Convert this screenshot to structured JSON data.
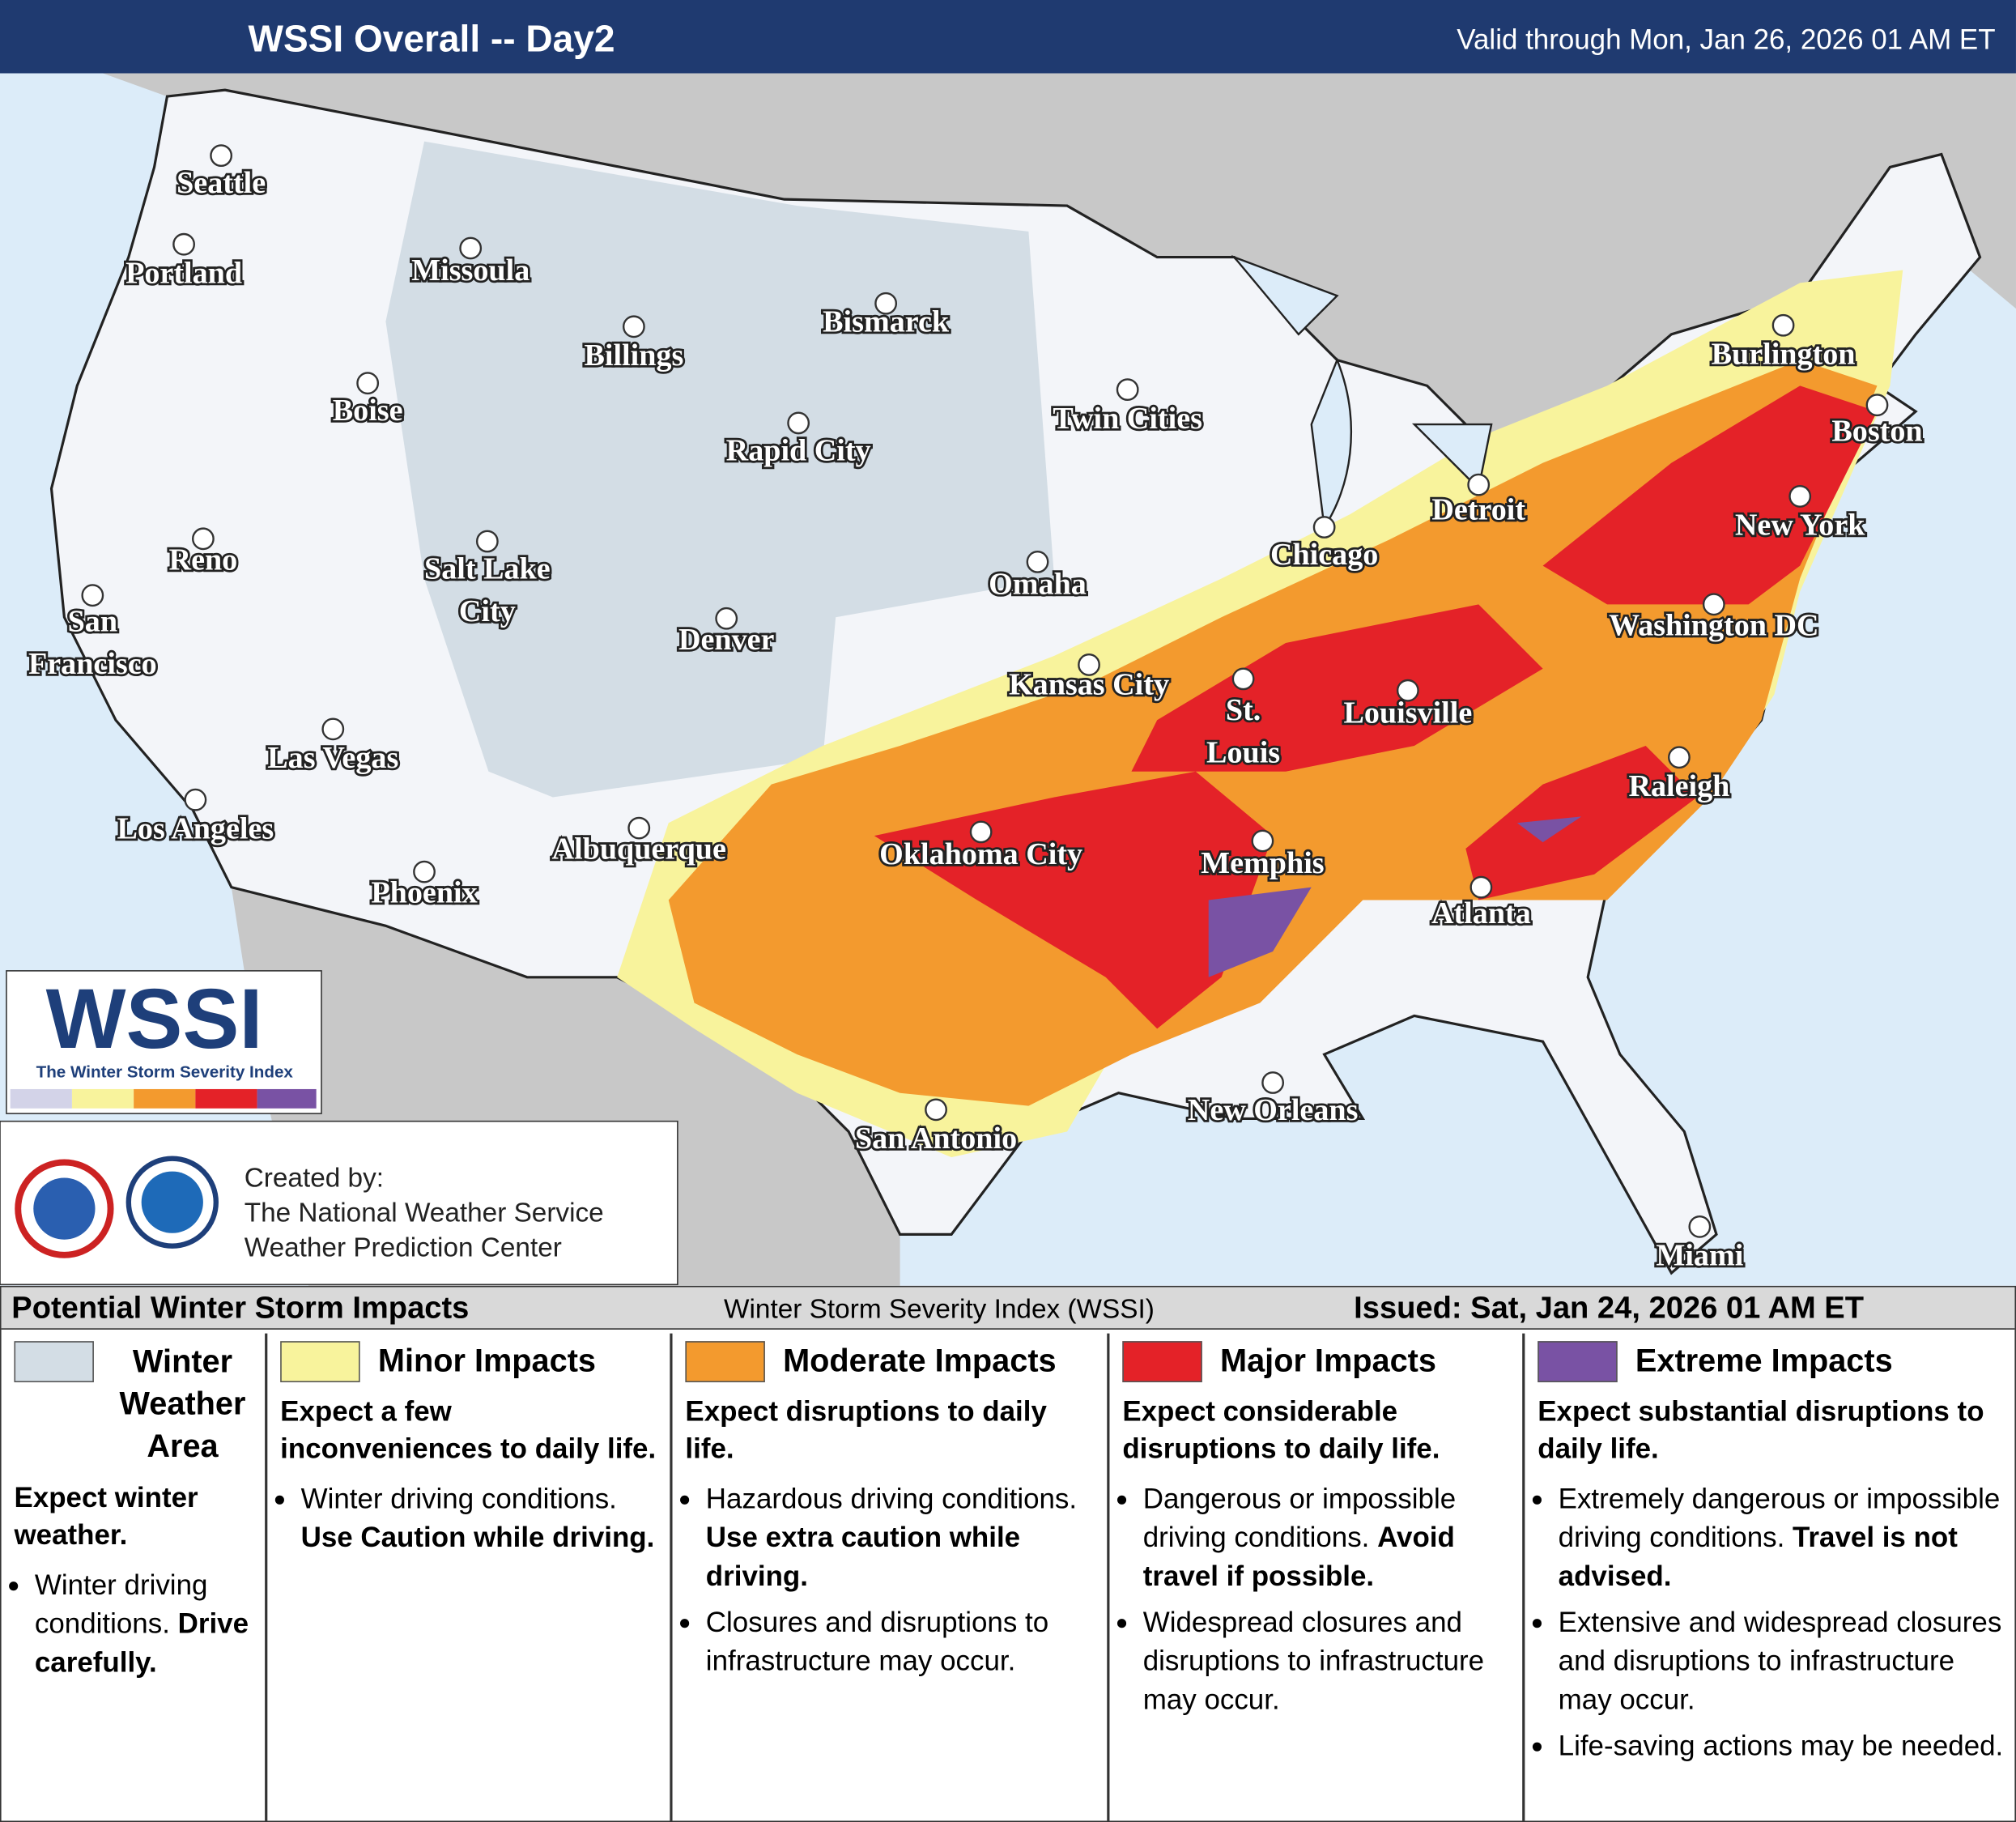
{
  "header": {
    "title": "WSSI Overall -- Day2",
    "valid": "Valid through Mon, Jan 26, 2026 01 AM ET"
  },
  "cities": [
    {
      "lines": [
        "Seattle"
      ]
    },
    {
      "lines": [
        "Portland"
      ]
    },
    {
      "lines": [
        "Missoula"
      ]
    },
    {
      "lines": [
        "Billings"
      ]
    },
    {
      "lines": [
        "Bismarck"
      ]
    },
    {
      "lines": [
        "Boise"
      ]
    },
    {
      "lines": [
        "Rapid City"
      ]
    },
    {
      "lines": [
        "Twin Cities"
      ]
    },
    {
      "lines": [
        "Reno"
      ]
    },
    {
      "lines": [
        "Salt Lake",
        "City"
      ]
    },
    {
      "lines": [
        "San",
        "Francisco"
      ]
    },
    {
      "lines": [
        "Denver"
      ]
    },
    {
      "lines": [
        "Omaha"
      ]
    },
    {
      "lines": [
        "Chicago"
      ]
    },
    {
      "lines": [
        "Detroit"
      ]
    },
    {
      "lines": [
        "Burlington"
      ]
    },
    {
      "lines": [
        "Boston"
      ]
    },
    {
      "lines": [
        "New York"
      ]
    },
    {
      "lines": [
        "Washington DC"
      ]
    },
    {
      "lines": [
        "Kansas City"
      ]
    },
    {
      "lines": [
        "St.",
        "Louis"
      ]
    },
    {
      "lines": [
        "Louisville"
      ]
    },
    {
      "lines": [
        "Las Vegas"
      ]
    },
    {
      "lines": [
        "Los Angeles"
      ]
    },
    {
      "lines": [
        "Raleigh"
      ]
    },
    {
      "lines": [
        "Albuquerque"
      ]
    },
    {
      "lines": [
        "Oklahoma City"
      ]
    },
    {
      "lines": [
        "Memphis"
      ]
    },
    {
      "lines": [
        "Phoenix"
      ]
    },
    {
      "lines": [
        "Atlanta"
      ]
    },
    {
      "lines": [
        "New Orleans"
      ]
    },
    {
      "lines": [
        "San Antonio"
      ]
    },
    {
      "lines": [
        "Miami"
      ]
    }
  ],
  "logo": {
    "title": "WSSI",
    "subtitle": "The Winter Storm Severity Index"
  },
  "credits": {
    "intro": "Created by:",
    "org": "The National Weather Service",
    "center": "Weather Prediction Center"
  },
  "legend": {
    "title": "Potential Winter Storm Impacts",
    "subtitle": "Winter Storm Severity Index (WSSI)",
    "issued": "Issued: Sat, Jan 24, 2026 01 AM ET",
    "levels": [
      {
        "name": "Winter Weather Area",
        "color": "#d3dde5",
        "headline": "Expect winter weather.",
        "bullets": [
          [
            {
              "text": "Winter driving conditions. "
            },
            {
              "text": "Drive carefully.",
              "bold": true
            }
          ]
        ]
      },
      {
        "name": "Minor Impacts",
        "color": "#f8f39c",
        "headline": "Expect a few inconveniences to daily life.",
        "bullets": [
          [
            {
              "text": "Winter driving conditions. "
            },
            {
              "text": "Use Caution while driving.",
              "bold": true
            }
          ]
        ]
      },
      {
        "name": "Moderate Impacts",
        "color": "#f39a2e",
        "headline": "Expect disruptions to daily life.",
        "bullets": [
          [
            {
              "text": "Hazardous driving conditions. "
            },
            {
              "text": "Use extra caution while driving.",
              "bold": true
            }
          ],
          [
            {
              "text": "Closures and disruptions to infrastructure may occur."
            }
          ]
        ]
      },
      {
        "name": "Major Impacts",
        "color": "#e42228",
        "headline": "Expect considerable disruptions to daily life.",
        "bullets": [
          [
            {
              "text": "Dangerous or impossible driving conditions. "
            },
            {
              "text": "Avoid travel if possible.",
              "bold": true
            }
          ],
          [
            {
              "text": "Widespread closures and disruptions to infrastructure may occur."
            }
          ]
        ]
      },
      {
        "name": "Extreme Impacts",
        "color": "#7952a4",
        "headline": "Expect substantial disruptions to daily life.",
        "bullets": [
          [
            {
              "text": "Extremely dangerous or impossible driving conditions. "
            },
            {
              "text": "Travel is not advised.",
              "bold": true
            }
          ],
          [
            {
              "text": "Extensive and widespread closures and disruptions to infrastructure may occur."
            }
          ],
          [
            {
              "text": "Life-saving actions may be needed."
            }
          ]
        ]
      }
    ]
  }
}
